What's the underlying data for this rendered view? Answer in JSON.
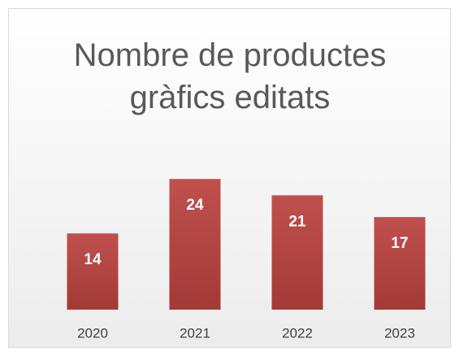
{
  "chart_data": {
    "type": "bar",
    "title": "Nombre de productes gràfics editats",
    "categories": [
      "2020",
      "2021",
      "2022",
      "2023"
    ],
    "values": [
      14,
      24,
      21,
      17
    ],
    "color": "#b8453f",
    "ylim": [
      0,
      30
    ]
  }
}
